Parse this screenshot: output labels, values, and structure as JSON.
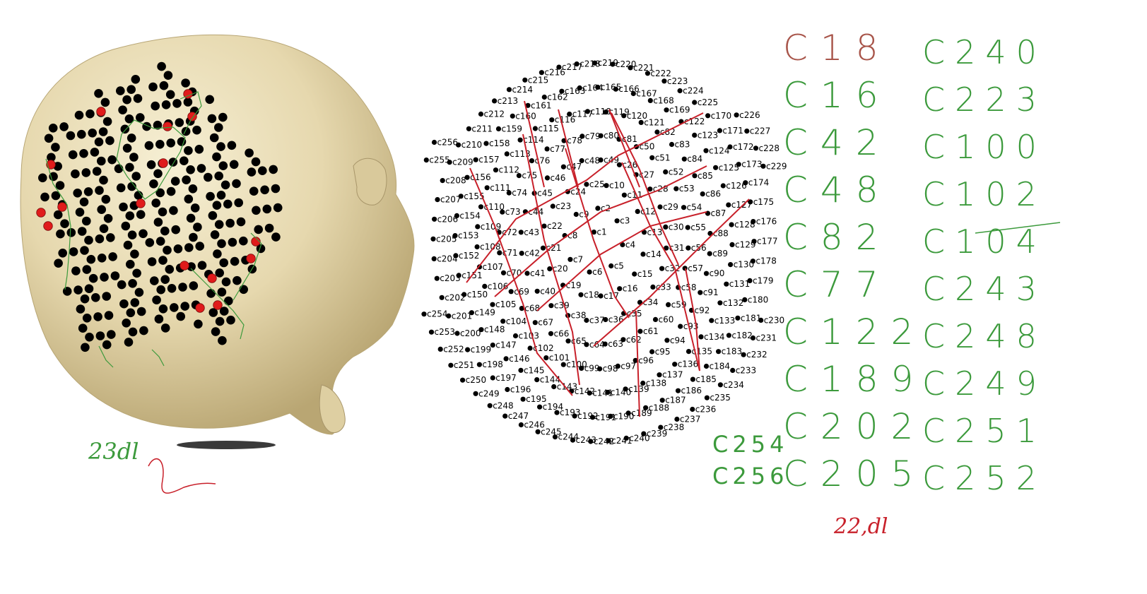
{
  "head_view": {
    "cap_electrodes": 256,
    "marked_electrodes": 16
  },
  "layout_map": {
    "electrodes": [
      "c1",
      "c2",
      "c3",
      "c4",
      "c5",
      "c6",
      "c7",
      "c8",
      "c9",
      "c10",
      "c11",
      "c12",
      "c13",
      "c14",
      "c15",
      "c16",
      "c17",
      "c18",
      "c19",
      "c20",
      "c21",
      "c22",
      "c23",
      "c24",
      "c25",
      "c26",
      "c27",
      "c28",
      "c29",
      "c30",
      "c31",
      "c32",
      "c33",
      "c34",
      "c35",
      "c36",
      "c37",
      "c38",
      "c39",
      "c40",
      "c41",
      "c42",
      "c43",
      "c44",
      "c45",
      "c46",
      "c47",
      "c48",
      "c49",
      "c50",
      "c51",
      "c52",
      "c53",
      "c54",
      "c55",
      "c56",
      "c57",
      "c58",
      "c59",
      "c60",
      "c61",
      "c62",
      "c63",
      "c64",
      "c65",
      "c66",
      "c67",
      "c68",
      "c69",
      "c70",
      "c71",
      "c72",
      "c73",
      "c74",
      "c75",
      "c76",
      "c77",
      "c78",
      "c79",
      "c80",
      "c81",
      "c82",
      "c83",
      "c84",
      "c85",
      "c86",
      "c87",
      "c88",
      "c89",
      "c90",
      "c91",
      "c92",
      "c93",
      "c94",
      "c95",
      "c96",
      "c97",
      "c98",
      "c99",
      "c100",
      "c101",
      "c102",
      "c103",
      "c104",
      "c105",
      "c106",
      "c107",
      "c108",
      "c109",
      "c110",
      "c111",
      "c112",
      "c113",
      "c114",
      "c115",
      "c116",
      "c117",
      "c118",
      "c119",
      "c120",
      "c121",
      "c122",
      "c123",
      "c124",
      "c125",
      "c126",
      "c127",
      "c128",
      "c129",
      "c130",
      "c131",
      "c132",
      "c133",
      "c134",
      "c135",
      "c136",
      "c137",
      "c138",
      "c139",
      "c140",
      "c141",
      "c142",
      "c143",
      "c144",
      "c145",
      "c146",
      "c147",
      "c148",
      "c149",
      "c150",
      "c151",
      "c152",
      "c153",
      "c154",
      "c155",
      "c156",
      "c157",
      "c158",
      "c159",
      "c160",
      "c161",
      "c162",
      "c163",
      "c164",
      "c165",
      "c166",
      "c167",
      "c168",
      "c169",
      "c170",
      "c171",
      "c172",
      "c173",
      "c174",
      "c175",
      "c176",
      "c177",
      "c178",
      "c179",
      "c180",
      "c181",
      "c182",
      "c183",
      "c184",
      "c185",
      "c186",
      "c187",
      "c188",
      "c189",
      "c190",
      "c191",
      "c192",
      "c193",
      "c194",
      "c195",
      "c196",
      "c197",
      "c198",
      "c199",
      "c200",
      "c201",
      "c202",
      "c203",
      "c204",
      "c205",
      "c206",
      "c207",
      "c208",
      "c209",
      "c210",
      "c211",
      "c212",
      "c213",
      "c214",
      "c215",
      "c216",
      "c217",
      "c218",
      "c219",
      "c220",
      "c221",
      "c222",
      "c223",
      "c224",
      "c225",
      "c226",
      "c227",
      "c228",
      "c229",
      "c230",
      "c231",
      "c232",
      "c233",
      "c234",
      "c235",
      "c236",
      "c237",
      "c238",
      "c239",
      "c240",
      "c241",
      "c242",
      "c243",
      "c244",
      "c245",
      "c246",
      "c247",
      "c248",
      "c249",
      "c250",
      "c251",
      "c252",
      "c253",
      "c254",
      "c255",
      "c256"
    ]
  },
  "handwriting": {
    "left_col": [
      "C18",
      "C16",
      "C42",
      "C48",
      "C82",
      "C77",
      "C122",
      "C189",
      "C202",
      "C205"
    ],
    "right_col": [
      "C240",
      "C223",
      "C100",
      "C102",
      "C104",
      "C243",
      "C248",
      "C249",
      "C251",
      "C252"
    ],
    "extra": [
      "C254",
      "C256"
    ],
    "note_left": "23dl",
    "note_bottom": "22,dl"
  },
  "colors": {
    "scalp": "#e8dcb4",
    "scalp_shadow": "#c9b98a",
    "electrode": "#000000",
    "marked": "#e01b1b",
    "red_line": "#c8202a",
    "green_ink": "#3c9a3c"
  }
}
